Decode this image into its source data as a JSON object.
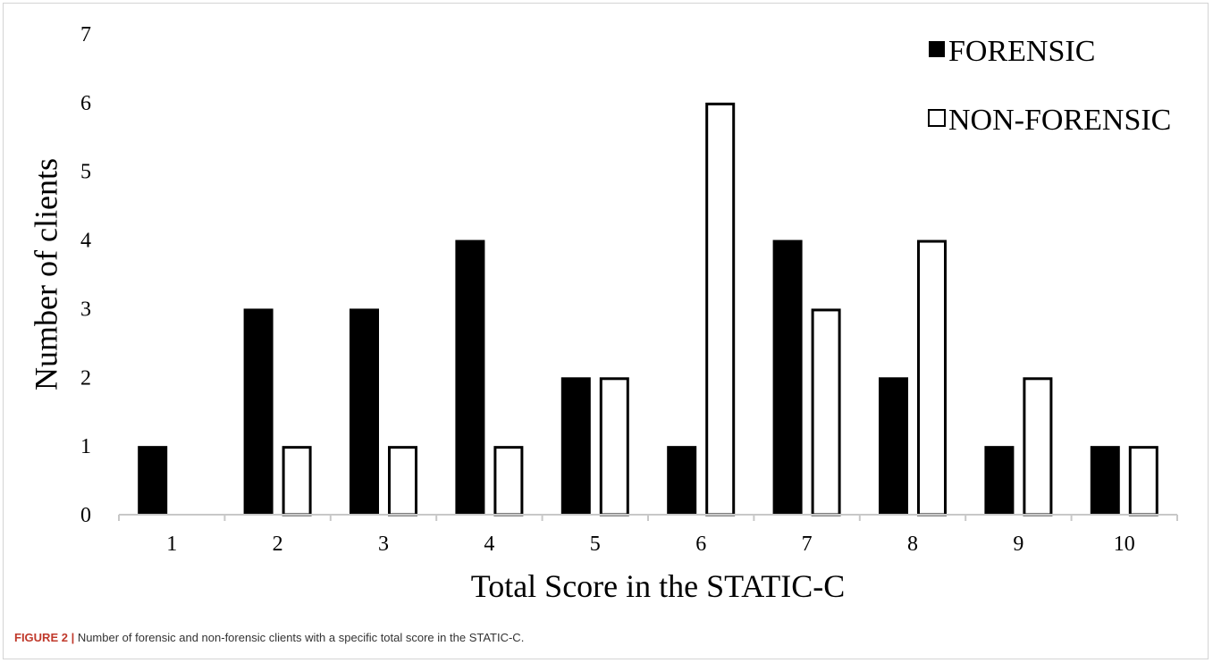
{
  "chart_data": {
    "type": "bar",
    "categories": [
      "1",
      "2",
      "3",
      "4",
      "5",
      "6",
      "7",
      "8",
      "9",
      "10"
    ],
    "series": [
      {
        "name": "FORENSIC",
        "values": [
          1,
          3,
          3,
          4,
          2,
          1,
          4,
          2,
          1,
          1
        ],
        "fill": "#000000"
      },
      {
        "name": "NON-FORENSIC",
        "values": [
          0,
          1,
          1,
          1,
          2,
          6,
          3,
          4,
          2,
          1
        ],
        "fill": "#ffffff"
      }
    ],
    "xlabel": "Total Score in the STATIC-C",
    "ylabel": "Number of clients",
    "ylim": [
      0,
      7
    ],
    "yticks": [
      "0",
      "1",
      "2",
      "3",
      "4",
      "5",
      "6",
      "7"
    ],
    "grid": false,
    "legend_position": "top-right"
  },
  "caption": {
    "label": "FIGURE 2 |",
    "text": " Number of forensic and non-forensic clients with a specific total score in the STATIC-C."
  }
}
